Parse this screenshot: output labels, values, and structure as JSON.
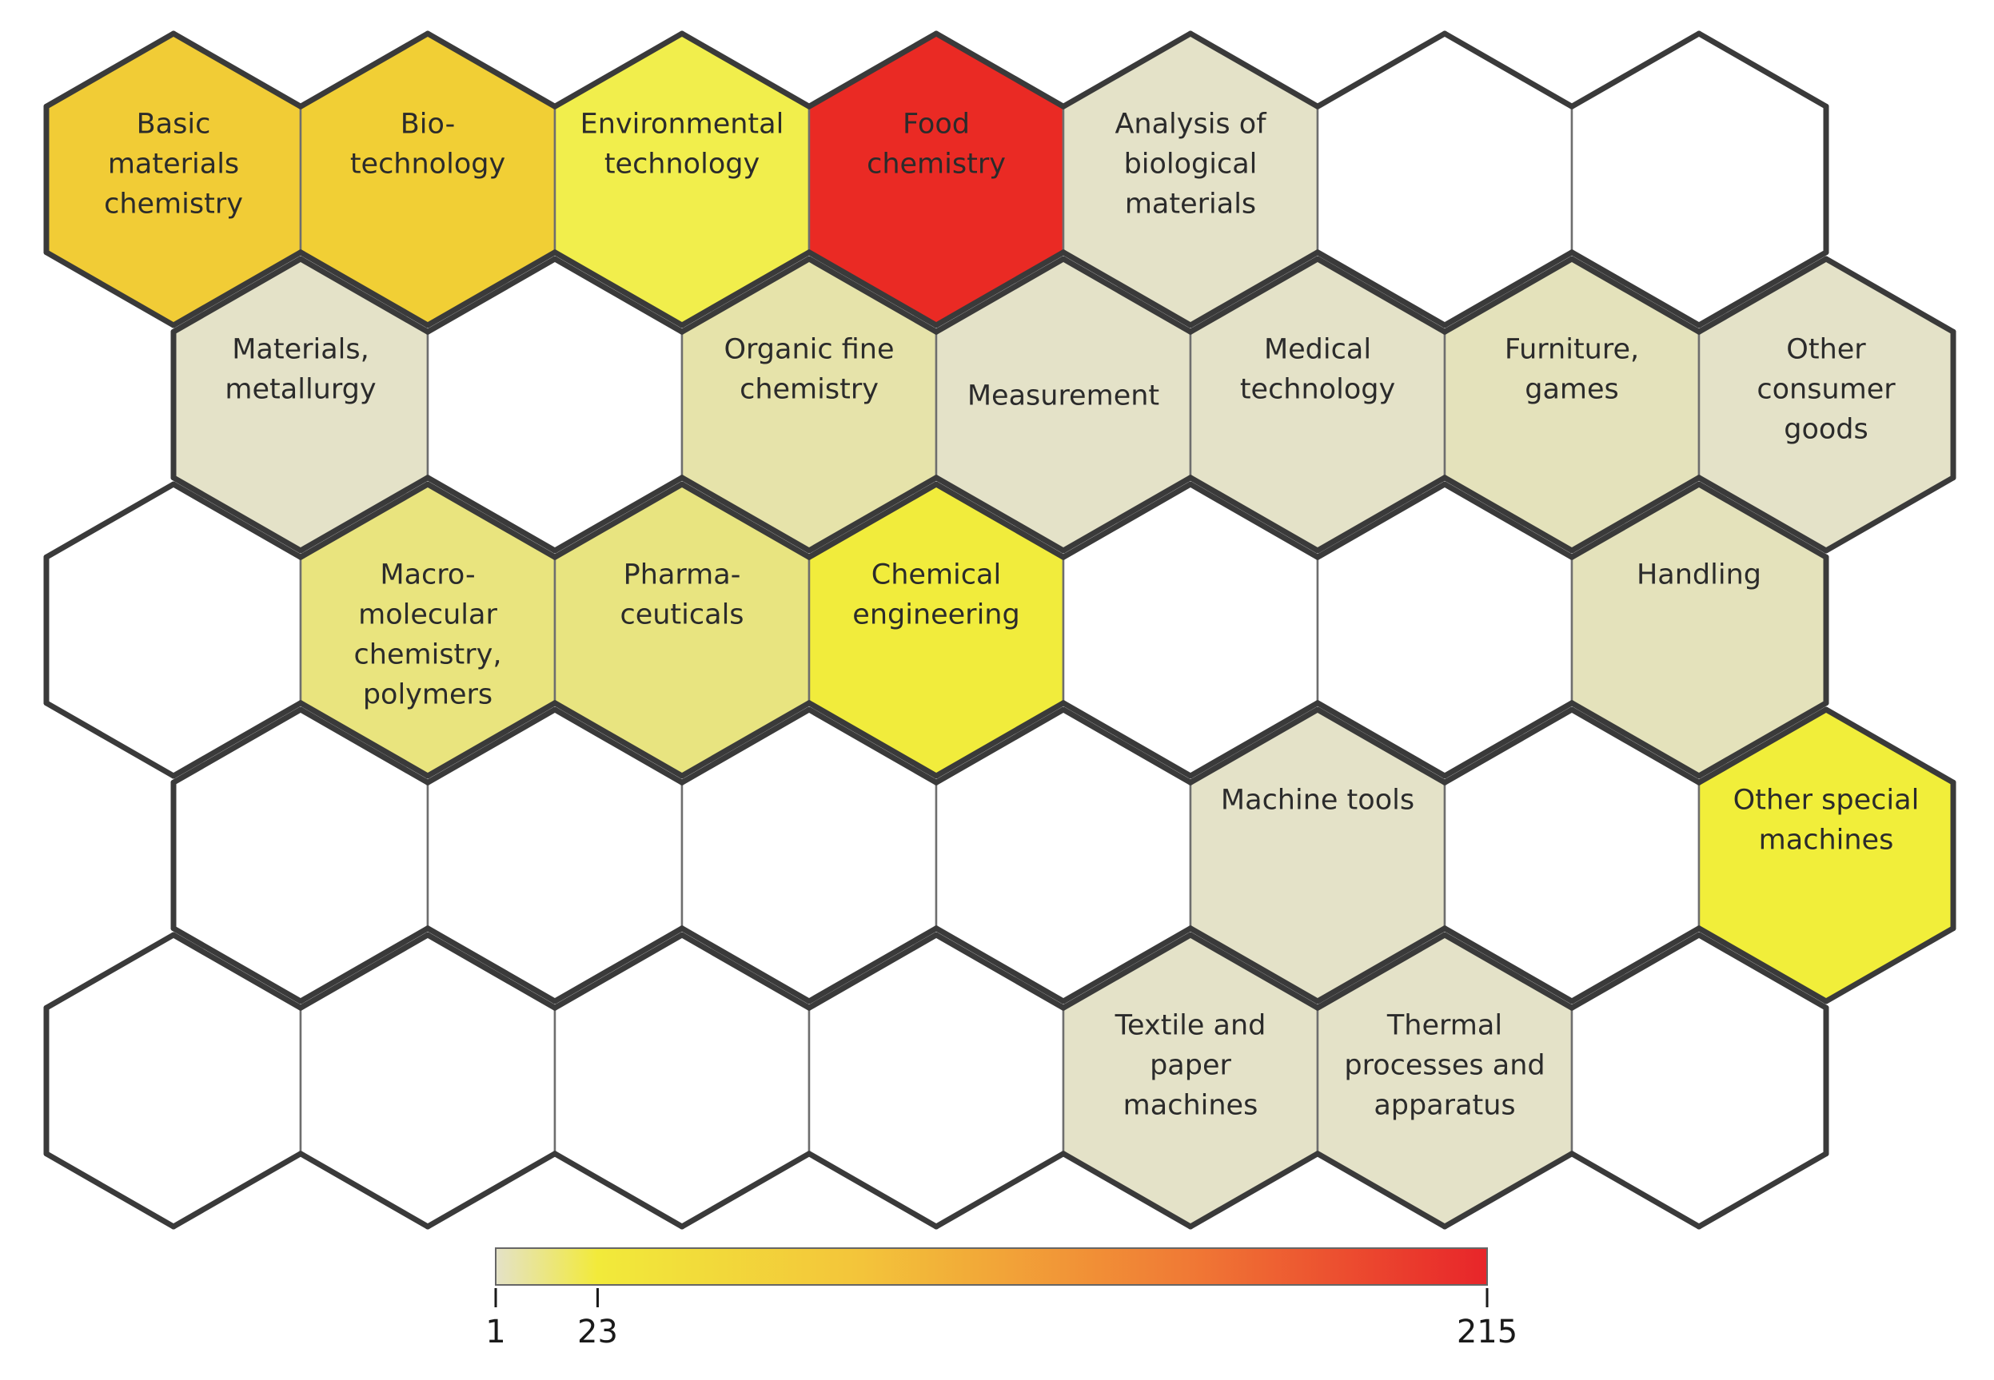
{
  "map": {
    "rows": [
      [
        {
          "label": [
            "Basic",
            "materials",
            "chemistry"
          ],
          "fill": "#f1cc36"
        },
        {
          "label": [
            "Bio-",
            "technology"
          ],
          "fill": "#f1cf35"
        },
        {
          "label": [
            "Environmental",
            "technology"
          ],
          "fill": "#f1ee4c"
        },
        {
          "label": [
            "Food",
            "chemistry"
          ],
          "fill": "#ea2a24"
        },
        {
          "label": [
            "Analysis of",
            "biological",
            "materials"
          ],
          "fill": "#e4e2c8"
        },
        {
          "label": [],
          "fill": "#ffffff"
        },
        {
          "label": [],
          "fill": "#ffffff"
        }
      ],
      [
        {
          "label": [
            "Materials,",
            "metallurgy"
          ],
          "fill": "#e4e2c8"
        },
        {
          "label": [],
          "fill": "#ffffff"
        },
        {
          "label": [
            "Organic fine",
            "chemistry"
          ],
          "fill": "#e6e3aa"
        },
        {
          "label": [
            "Measurement"
          ],
          "fill": "#e4e2c8"
        },
        {
          "label": [
            "Medical",
            "technology"
          ],
          "fill": "#e4e2c8"
        },
        {
          "label": [
            "Furniture,",
            "games"
          ],
          "fill": "#e4e2bb"
        },
        {
          "label": [
            "Other",
            "consumer",
            "goods"
          ],
          "fill": "#e4e2c8"
        }
      ],
      [
        {
          "label": [],
          "fill": "#ffffff"
        },
        {
          "label": [
            "Macro-",
            "molecular",
            "chemistry,",
            "polymers"
          ],
          "fill": "#e9e47e"
        },
        {
          "label": [
            "Pharma-",
            "ceuticals"
          ],
          "fill": "#e8e480"
        },
        {
          "label": [
            "Chemical",
            "engineering"
          ],
          "fill": "#f1ec3c"
        },
        {
          "label": [],
          "fill": "#ffffff"
        },
        {
          "label": [],
          "fill": "#ffffff"
        },
        {
          "label": [
            "Handling"
          ],
          "fill": "#e4e2bb"
        }
      ],
      [
        {
          "label": [],
          "fill": "#ffffff"
        },
        {
          "label": [],
          "fill": "#ffffff"
        },
        {
          "label": [],
          "fill": "#ffffff"
        },
        {
          "label": [],
          "fill": "#ffffff"
        },
        {
          "label": [
            "Machine tools"
          ],
          "fill": "#e4e2c8"
        },
        {
          "label": [],
          "fill": "#ffffff"
        },
        {
          "label": [
            "Other special",
            "machines"
          ],
          "fill": "#f1ee3a"
        }
      ],
      [
        {
          "label": [],
          "fill": "#ffffff"
        },
        {
          "label": [],
          "fill": "#ffffff"
        },
        {
          "label": [],
          "fill": "#ffffff"
        },
        {
          "label": [],
          "fill": "#ffffff"
        },
        {
          "label": [
            "Textile and",
            "paper",
            "machines"
          ],
          "fill": "#e4e2c8"
        },
        {
          "label": [
            "Thermal",
            "processes and",
            "apparatus"
          ],
          "fill": "#e4e2c8"
        },
        {
          "label": [],
          "fill": "#ffffff"
        }
      ]
    ],
    "cluster_borders": [
      [
        [
          0,
          0,
          "ALL"
        ]
      ]
    ]
  },
  "colorbar": {
    "min": 1,
    "max": 215,
    "ticks": [
      {
        "value": 1,
        "label": "1"
      },
      {
        "value": 23,
        "label": "23"
      },
      {
        "value": 215,
        "label": "215"
      }
    ],
    "stops": [
      {
        "value": 1,
        "color": "#e4e2c8"
      },
      {
        "value": 23,
        "color": "#f2ea3a"
      },
      {
        "value": 80,
        "color": "#f3c43a"
      },
      {
        "value": 150,
        "color": "#f07a35"
      },
      {
        "value": 215,
        "color": "#e8252a"
      }
    ]
  }
}
